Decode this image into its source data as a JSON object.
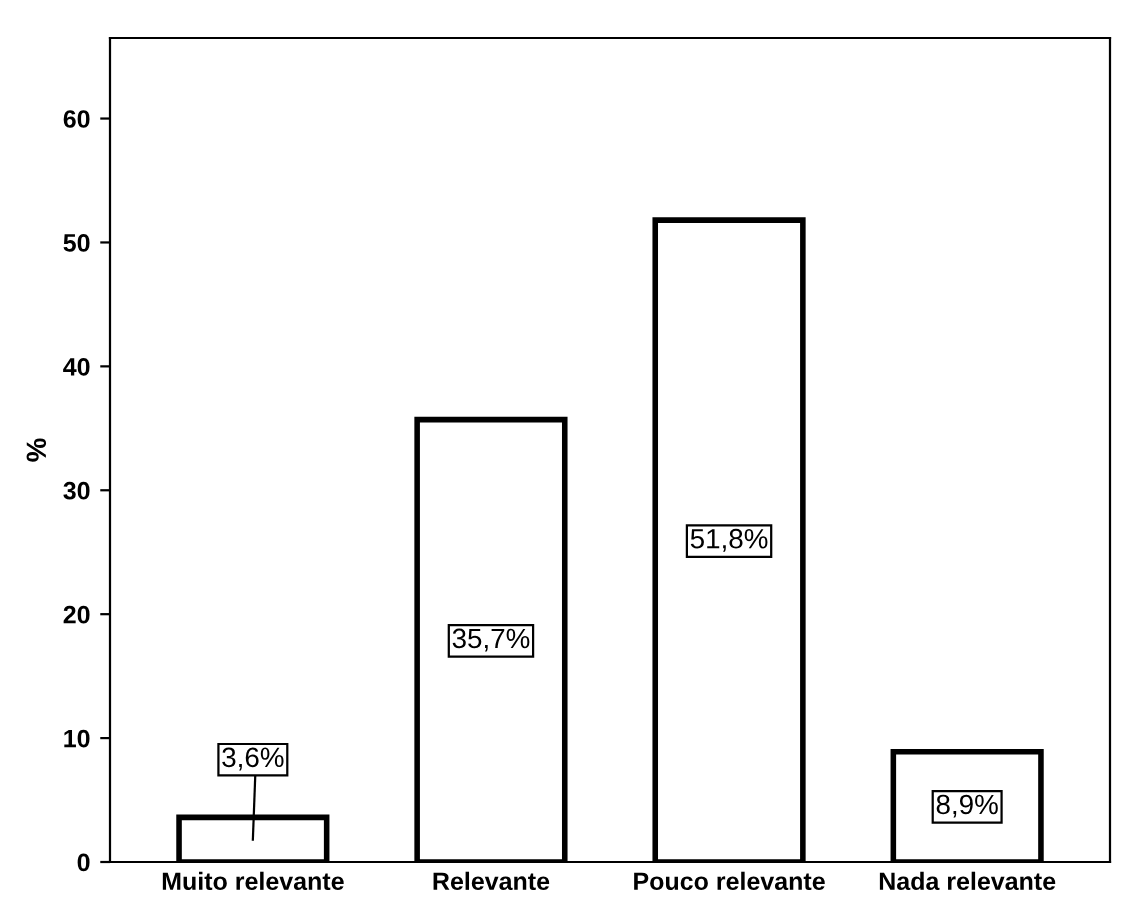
{
  "chart_data": {
    "type": "bar",
    "ylabel": "%",
    "categories": [
      "Muito relevante",
      "Relevante",
      "Pouco relevante",
      "Nada relevante"
    ],
    "values": [
      3.6,
      35.7,
      51.8,
      8.9
    ],
    "value_labels": [
      "3,6%",
      "35,7%",
      "51,8%",
      "8,9%"
    ],
    "color": "#ffffff",
    "ylim": [
      0,
      66.5
    ],
    "yticks": [
      0,
      10,
      20,
      30,
      40,
      50,
      60
    ],
    "grid": false
  }
}
